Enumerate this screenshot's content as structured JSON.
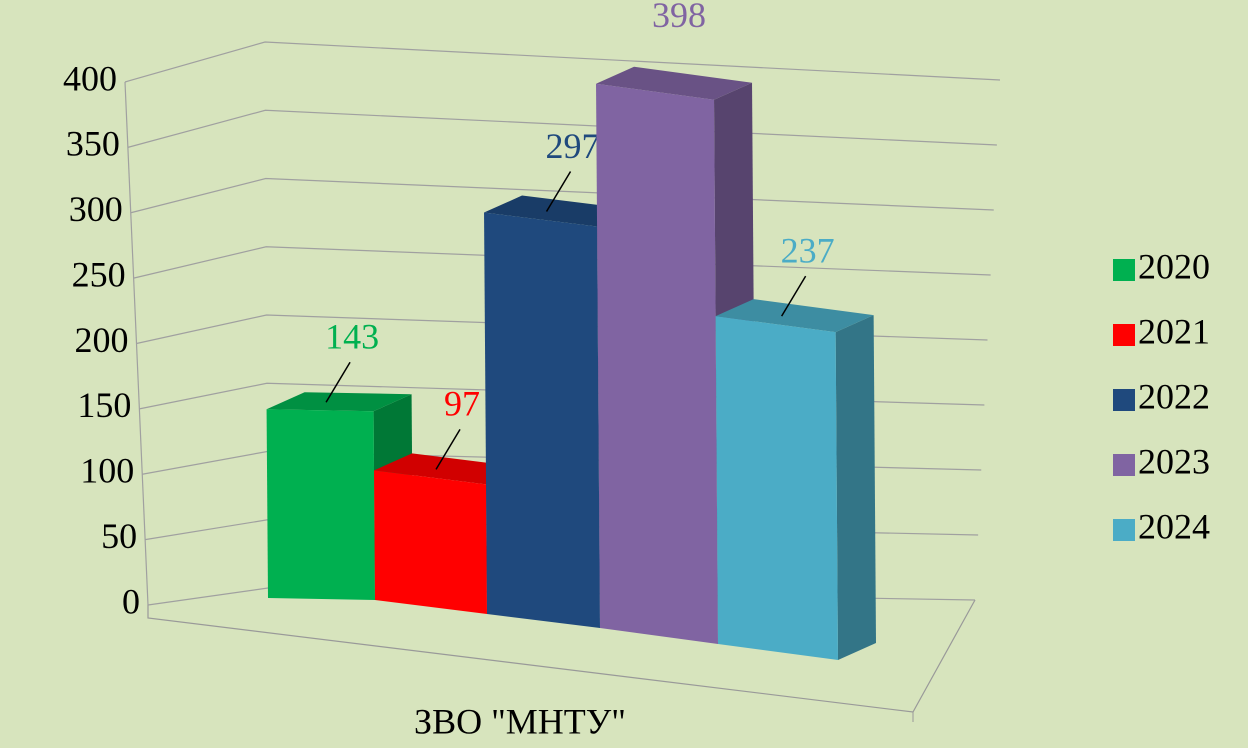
{
  "chart_data": {
    "type": "bar3d",
    "categories": [
      "ЗВО \"МНТУ\""
    ],
    "series": [
      {
        "name": "2020",
        "color": "#00b050",
        "values": [
          143
        ]
      },
      {
        "name": "2021",
        "color": "#ff0000",
        "values": [
          97
        ]
      },
      {
        "name": "2022",
        "color": "#1f497d",
        "values": [
          297
        ]
      },
      {
        "name": "2023",
        "color": "#8064a2",
        "values": [
          398
        ]
      },
      {
        "name": "2024",
        "color": "#4bacc6",
        "values": [
          237
        ]
      }
    ],
    "ylim": [
      0,
      400
    ],
    "yticks": [
      0,
      50,
      100,
      150,
      200,
      250,
      300,
      350,
      400
    ],
    "grid": true,
    "legend": "right"
  }
}
